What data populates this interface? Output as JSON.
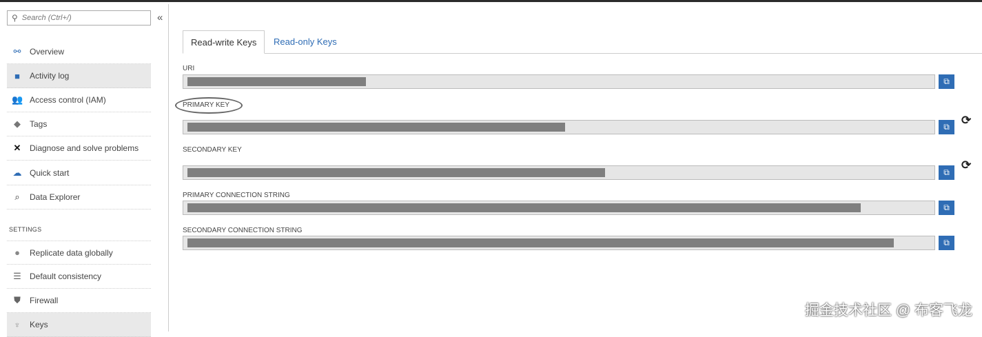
{
  "sidebar": {
    "search_placeholder": "Search (Ctrl+/)",
    "collapse_label": "«",
    "items": [
      {
        "label": "Overview",
        "icon": "overview-icon"
      },
      {
        "label": "Activity log",
        "icon": "activity-log-icon"
      },
      {
        "label": "Access control (IAM)",
        "icon": "iam-icon"
      },
      {
        "label": "Tags",
        "icon": "tag-icon"
      },
      {
        "label": "Diagnose and solve problems",
        "icon": "tools-icon"
      },
      {
        "label": "Quick start",
        "icon": "quick-start-icon"
      },
      {
        "label": "Data Explorer",
        "icon": "data-explorer-icon"
      }
    ],
    "section_label": "SETTINGS",
    "settings_items": [
      {
        "label": "Replicate data globally",
        "icon": "globe-icon"
      },
      {
        "label": "Default consistency",
        "icon": "consistency-icon"
      },
      {
        "label": "Firewall",
        "icon": "shield-icon"
      },
      {
        "label": "Keys",
        "icon": "key-icon"
      }
    ]
  },
  "main": {
    "tabs": [
      {
        "label": "Read-write Keys",
        "active": true
      },
      {
        "label": "Read-only Keys",
        "active": false
      }
    ],
    "fields": [
      {
        "label": "URI",
        "redacted_fraction": 0.24
      },
      {
        "label": "PRIMARY KEY",
        "redacted_fraction": 0.5,
        "regenerate": true,
        "highlighted": true
      },
      {
        "label": "SECONDARY KEY",
        "redacted_fraction": 0.55,
        "regenerate": true
      },
      {
        "label": "PRIMARY CONNECTION STRING",
        "redacted_fraction": 0.9
      },
      {
        "label": "SECONDARY CONNECTION STRING",
        "redacted_fraction": 0.94
      }
    ]
  },
  "colors": {
    "accent": "#2f6db5",
    "redaction": "#7f7f7f",
    "field_bg": "#e6e6e6"
  },
  "watermark": "掘金技术社区 @ 布客飞龙"
}
